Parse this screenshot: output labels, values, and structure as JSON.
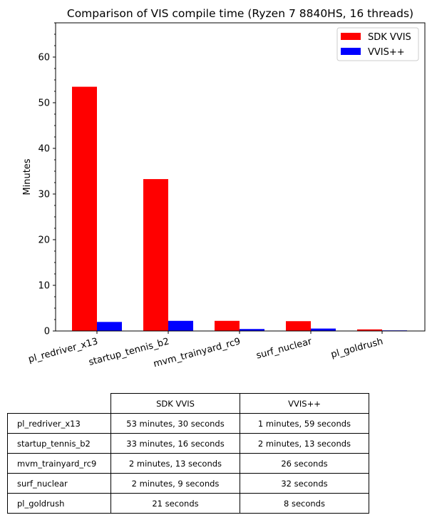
{
  "chart_data": {
    "type": "bar",
    "title": "Comparison of VIS compile time (Ryzen 7 8840HS, 16 threads)",
    "xlabel": "",
    "ylabel": "Minutes",
    "ylim": [
      0,
      67.5
    ],
    "yticks": [
      0,
      10,
      20,
      30,
      40,
      50,
      60
    ],
    "categories": [
      "pl_redriver_x13",
      "startup_tennis_b2",
      "mvm_trainyard_rc9",
      "surf_nuclear",
      "pl_goldrush"
    ],
    "series": [
      {
        "name": "SDK VVIS",
        "color": "#ff0000",
        "values": [
          53.5,
          33.27,
          2.22,
          2.15,
          0.35
        ]
      },
      {
        "name": "VVIS++",
        "color": "#0000ff",
        "values": [
          1.98,
          2.22,
          0.43,
          0.53,
          0.13
        ]
      }
    ],
    "legend": "top-right",
    "grid": false
  },
  "table": {
    "headers": [
      "SDK VVIS",
      "VVIS++"
    ],
    "rows": [
      {
        "label": "pl_redriver_x13",
        "cells": [
          "53 minutes, 30 seconds",
          "1 minutes, 59 seconds"
        ]
      },
      {
        "label": "startup_tennis_b2",
        "cells": [
          "33 minutes, 16 seconds",
          "2 minutes, 13 seconds"
        ]
      },
      {
        "label": "mvm_trainyard_rc9",
        "cells": [
          "2 minutes, 13 seconds",
          "26 seconds"
        ]
      },
      {
        "label": "surf_nuclear",
        "cells": [
          "2 minutes, 9 seconds",
          "32 seconds"
        ]
      },
      {
        "label": "pl_goldrush",
        "cells": [
          "21 seconds",
          "8 seconds"
        ]
      }
    ]
  }
}
